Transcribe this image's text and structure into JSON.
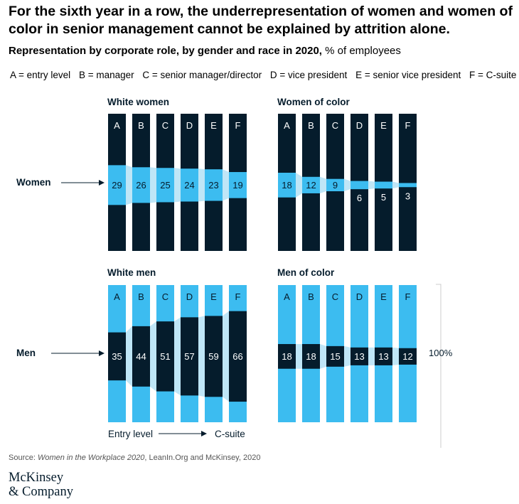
{
  "title": "For the sixth year in a row, the underrepresentation of women and women of color in senior management cannot be explained by attrition alone.",
  "subtitle_bold": "Representation by corporate role, by gender and race in 2020,",
  "subtitle_rest": " % of employees",
  "legend": [
    "A = entry level",
    "B = manager",
    "C = senior manager/director",
    "D = vice president",
    "E = senior vice president",
    "F = C-suite"
  ],
  "row_labels": {
    "women": "Women",
    "men": "Men"
  },
  "bracket_label": "100%",
  "axis_note": {
    "left": "Entry level",
    "right": "C-suite"
  },
  "source": {
    "prefix": "Source: ",
    "title": "Women in the Workplace 2020",
    "rest": ", LeanIn.Org and McKinsey, 2020"
  },
  "logo": {
    "line1": "McKinsey",
    "line2": "& Company"
  },
  "colors": {
    "navy": "#051c2c",
    "cyan": "#3cbcf0",
    "light": "#bfe6f7"
  },
  "chart_data": {
    "type": "bar",
    "categories": [
      "A",
      "B",
      "C",
      "D",
      "E",
      "F"
    ],
    "panels": [
      {
        "title": "White women",
        "values": [
          29,
          26,
          25,
          24,
          23,
          19
        ]
      },
      {
        "title": "Women of color",
        "values": [
          18,
          12,
          9,
          6,
          5,
          3
        ]
      },
      {
        "title": "White men",
        "values": [
          35,
          44,
          51,
          57,
          59,
          66
        ]
      },
      {
        "title": "Men of color",
        "values": [
          18,
          18,
          15,
          13,
          13,
          12
        ]
      }
    ],
    "ylim": [
      0,
      100
    ]
  }
}
